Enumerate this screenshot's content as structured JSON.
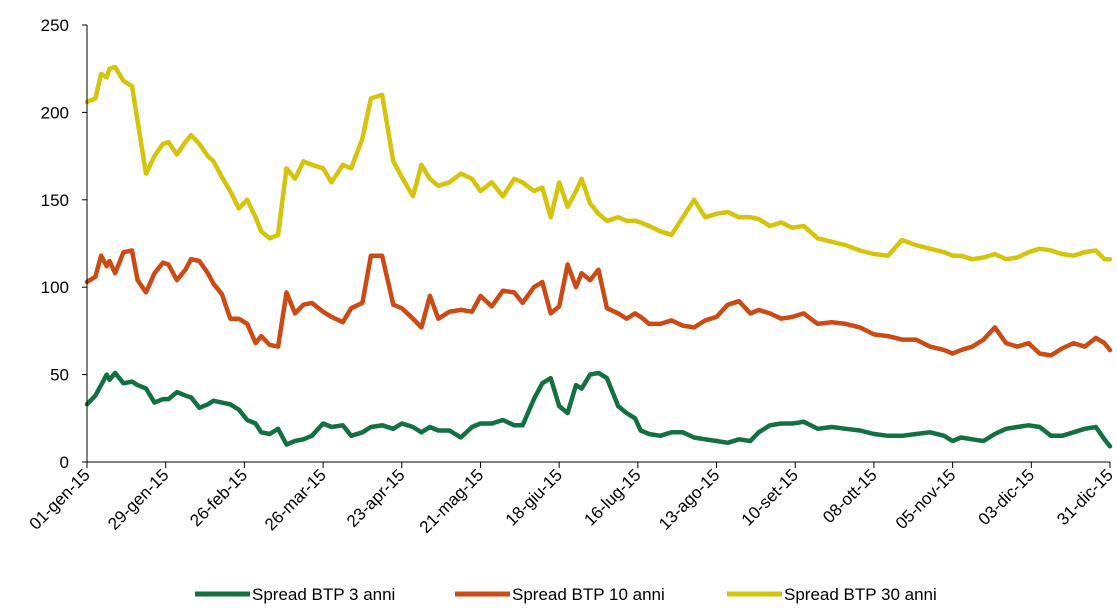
{
  "chart_data": {
    "type": "line",
    "title": "",
    "xlabel": "",
    "ylabel": "",
    "ylim": [
      0,
      250
    ],
    "yticks": [
      0,
      50,
      100,
      150,
      200,
      250
    ],
    "x_tick_labels": [
      "01-gen-15",
      "29-gen-15",
      "26-feb-15",
      "26-mar-15",
      "23-apr-15",
      "21-mag-15",
      "18-giu-15",
      "16-lug-15",
      "13-ago-15",
      "10-set-15",
      "08-ott-15",
      "05-nov-15",
      "03-dic-15",
      "31-dic-15"
    ],
    "x_tick_dates": [
      "2015-01-01",
      "2015-01-29",
      "2015-02-26",
      "2015-03-26",
      "2015-04-23",
      "2015-05-21",
      "2015-06-18",
      "2015-07-16",
      "2015-08-13",
      "2015-09-10",
      "2015-10-08",
      "2015-11-05",
      "2015-12-03",
      "2015-12-31"
    ],
    "legend_position": "bottom",
    "grid": false,
    "series": [
      {
        "name": "Spread BTP 3 anni",
        "color": "#137040",
        "x": [
          "2015-01-01",
          "2015-01-04",
          "2015-01-06",
          "2015-01-08",
          "2015-01-09",
          "2015-01-11",
          "2015-01-14",
          "2015-01-17",
          "2015-01-19",
          "2015-01-22",
          "2015-01-25",
          "2015-01-28",
          "2015-01-30",
          "2015-02-02",
          "2015-02-05",
          "2015-02-07",
          "2015-02-10",
          "2015-02-13",
          "2015-02-15",
          "2015-02-18",
          "2015-02-21",
          "2015-02-24",
          "2015-02-27",
          "2015-03-02",
          "2015-03-04",
          "2015-03-07",
          "2015-03-10",
          "2015-03-13",
          "2015-03-16",
          "2015-03-19",
          "2015-03-22",
          "2015-03-26",
          "2015-03-29",
          "2015-04-02",
          "2015-04-05",
          "2015-04-09",
          "2015-04-12",
          "2015-04-16",
          "2015-04-20",
          "2015-04-23",
          "2015-04-27",
          "2015-04-30",
          "2015-05-03",
          "2015-05-06",
          "2015-05-10",
          "2015-05-14",
          "2015-05-18",
          "2015-05-21",
          "2015-05-25",
          "2015-05-29",
          "2015-06-02",
          "2015-06-05",
          "2015-06-09",
          "2015-06-12",
          "2015-06-15",
          "2015-06-18",
          "2015-06-21",
          "2015-06-24",
          "2015-06-26",
          "2015-06-29",
          "2015-07-02",
          "2015-07-05",
          "2015-07-09",
          "2015-07-12",
          "2015-07-15",
          "2015-07-17",
          "2015-07-20",
          "2015-07-24",
          "2015-07-28",
          "2015-08-01",
          "2015-08-05",
          "2015-08-09",
          "2015-08-13",
          "2015-08-17",
          "2015-08-21",
          "2015-08-25",
          "2015-08-28",
          "2015-09-01",
          "2015-09-05",
          "2015-09-09",
          "2015-09-13",
          "2015-09-18",
          "2015-09-23",
          "2015-09-28",
          "2015-10-03",
          "2015-10-08",
          "2015-10-13",
          "2015-10-18",
          "2015-10-23",
          "2015-10-28",
          "2015-11-02",
          "2015-11-05",
          "2015-11-08",
          "2015-11-12",
          "2015-11-16",
          "2015-11-20",
          "2015-11-24",
          "2015-11-28",
          "2015-12-02",
          "2015-12-06",
          "2015-12-10",
          "2015-12-14",
          "2015-12-18",
          "2015-12-22",
          "2015-12-26",
          "2015-12-29",
          "2015-12-31"
        ],
        "y": [
          33,
          38,
          44,
          50,
          47,
          51,
          45,
          46,
          44,
          42,
          34,
          36,
          36,
          40,
          38,
          37,
          31,
          33,
          35,
          34,
          33,
          30,
          24,
          22,
          17,
          16,
          19,
          10,
          12,
          13,
          15,
          22,
          20,
          21,
          15,
          17,
          20,
          21,
          19,
          22,
          20,
          17,
          20,
          18,
          18,
          14,
          20,
          22,
          22,
          24,
          21,
          21,
          36,
          45,
          48,
          32,
          28,
          44,
          42,
          50,
          51,
          48,
          32,
          28,
          25,
          18,
          16,
          15,
          17,
          17,
          14,
          13,
          12,
          11,
          13,
          12,
          17,
          21,
          22,
          22,
          23,
          19,
          20,
          19,
          18,
          16,
          15,
          15,
          16,
          17,
          15,
          12,
          14,
          13,
          12,
          16,
          19,
          20,
          21,
          20,
          15,
          15,
          17,
          19,
          20,
          13,
          9
        ]
      },
      {
        "name": "Spread BTP 10 anni",
        "color": "#CC4A14",
        "x": [
          "2015-01-01",
          "2015-01-04",
          "2015-01-06",
          "2015-01-08",
          "2015-01-09",
          "2015-01-11",
          "2015-01-14",
          "2015-01-17",
          "2015-01-19",
          "2015-01-22",
          "2015-01-25",
          "2015-01-28",
          "2015-01-30",
          "2015-02-02",
          "2015-02-05",
          "2015-02-07",
          "2015-02-10",
          "2015-02-13",
          "2015-02-15",
          "2015-02-18",
          "2015-02-21",
          "2015-02-24",
          "2015-02-27",
          "2015-03-02",
          "2015-03-04",
          "2015-03-07",
          "2015-03-10",
          "2015-03-13",
          "2015-03-16",
          "2015-03-19",
          "2015-03-22",
          "2015-03-26",
          "2015-03-29",
          "2015-04-02",
          "2015-04-05",
          "2015-04-09",
          "2015-04-12",
          "2015-04-16",
          "2015-04-20",
          "2015-04-23",
          "2015-04-27",
          "2015-04-30",
          "2015-05-03",
          "2015-05-06",
          "2015-05-10",
          "2015-05-14",
          "2015-05-18",
          "2015-05-21",
          "2015-05-25",
          "2015-05-29",
          "2015-06-02",
          "2015-06-05",
          "2015-06-09",
          "2015-06-12",
          "2015-06-15",
          "2015-06-18",
          "2015-06-21",
          "2015-06-24",
          "2015-06-26",
          "2015-06-29",
          "2015-07-02",
          "2015-07-05",
          "2015-07-09",
          "2015-07-12",
          "2015-07-15",
          "2015-07-17",
          "2015-07-20",
          "2015-07-24",
          "2015-07-28",
          "2015-08-01",
          "2015-08-05",
          "2015-08-09",
          "2015-08-13",
          "2015-08-17",
          "2015-08-21",
          "2015-08-25",
          "2015-08-28",
          "2015-09-01",
          "2015-09-05",
          "2015-09-09",
          "2015-09-13",
          "2015-09-18",
          "2015-09-23",
          "2015-09-28",
          "2015-10-03",
          "2015-10-08",
          "2015-10-13",
          "2015-10-18",
          "2015-10-23",
          "2015-10-28",
          "2015-11-02",
          "2015-11-05",
          "2015-11-08",
          "2015-11-12",
          "2015-11-16",
          "2015-11-20",
          "2015-11-24",
          "2015-11-28",
          "2015-12-02",
          "2015-12-06",
          "2015-12-10",
          "2015-12-14",
          "2015-12-18",
          "2015-12-22",
          "2015-12-26",
          "2015-12-29",
          "2015-12-31"
        ],
        "y": [
          103,
          106,
          118,
          112,
          115,
          108,
          120,
          121,
          104,
          97,
          108,
          114,
          113,
          104,
          110,
          116,
          115,
          108,
          102,
          96,
          82,
          82,
          79,
          68,
          72,
          67,
          66,
          97,
          85,
          90,
          91,
          86,
          83,
          80,
          88,
          91,
          118,
          118,
          90,
          88,
          82,
          77,
          95,
          82,
          86,
          87,
          86,
          95,
          89,
          98,
          97,
          91,
          100,
          103,
          85,
          89,
          113,
          100,
          108,
          104,
          110,
          88,
          85,
          82,
          85,
          83,
          79,
          79,
          81,
          78,
          77,
          81,
          83,
          90,
          92,
          85,
          87,
          85,
          82,
          83,
          85,
          79,
          80,
          79,
          77,
          73,
          72,
          70,
          70,
          66,
          64,
          62,
          64,
          66,
          70,
          77,
          68,
          66,
          68,
          62,
          61,
          65,
          68,
          66,
          71,
          68,
          64
        ]
      },
      {
        "name": "Spread BTP 30 anni",
        "color": "#D5C40B",
        "x": [
          "2015-01-01",
          "2015-01-04",
          "2015-01-06",
          "2015-01-08",
          "2015-01-09",
          "2015-01-11",
          "2015-01-14",
          "2015-01-17",
          "2015-01-19",
          "2015-01-22",
          "2015-01-25",
          "2015-01-28",
          "2015-01-30",
          "2015-02-02",
          "2015-02-05",
          "2015-02-07",
          "2015-02-10",
          "2015-02-13",
          "2015-02-15",
          "2015-02-18",
          "2015-02-21",
          "2015-02-24",
          "2015-02-27",
          "2015-03-02",
          "2015-03-04",
          "2015-03-07",
          "2015-03-10",
          "2015-03-13",
          "2015-03-16",
          "2015-03-19",
          "2015-03-22",
          "2015-03-26",
          "2015-03-29",
          "2015-04-02",
          "2015-04-05",
          "2015-04-09",
          "2015-04-12",
          "2015-04-16",
          "2015-04-20",
          "2015-04-23",
          "2015-04-27",
          "2015-04-30",
          "2015-05-03",
          "2015-05-06",
          "2015-05-10",
          "2015-05-14",
          "2015-05-18",
          "2015-05-21",
          "2015-05-25",
          "2015-05-29",
          "2015-06-02",
          "2015-06-05",
          "2015-06-09",
          "2015-06-12",
          "2015-06-15",
          "2015-06-18",
          "2015-06-21",
          "2015-06-24",
          "2015-06-26",
          "2015-06-29",
          "2015-07-02",
          "2015-07-05",
          "2015-07-09",
          "2015-07-12",
          "2015-07-15",
          "2015-07-17",
          "2015-07-20",
          "2015-07-24",
          "2015-07-28",
          "2015-08-01",
          "2015-08-05",
          "2015-08-09",
          "2015-08-13",
          "2015-08-17",
          "2015-08-21",
          "2015-08-25",
          "2015-08-28",
          "2015-09-01",
          "2015-09-05",
          "2015-09-09",
          "2015-09-13",
          "2015-09-18",
          "2015-09-23",
          "2015-09-28",
          "2015-10-03",
          "2015-10-08",
          "2015-10-13",
          "2015-10-18",
          "2015-10-23",
          "2015-10-28",
          "2015-11-02",
          "2015-11-05",
          "2015-11-08",
          "2015-11-12",
          "2015-11-16",
          "2015-11-20",
          "2015-11-24",
          "2015-11-28",
          "2015-12-02",
          "2015-12-06",
          "2015-12-10",
          "2015-12-14",
          "2015-12-18",
          "2015-12-22",
          "2015-12-26",
          "2015-12-29",
          "2015-12-31"
        ],
        "y": [
          206,
          208,
          222,
          220,
          225,
          226,
          218,
          215,
          195,
          165,
          175,
          182,
          183,
          176,
          183,
          187,
          182,
          175,
          172,
          163,
          155,
          145,
          150,
          140,
          132,
          128,
          130,
          168,
          162,
          172,
          170,
          168,
          160,
          170,
          168,
          185,
          208,
          210,
          172,
          163,
          152,
          170,
          162,
          158,
          160,
          165,
          162,
          155,
          160,
          152,
          162,
          160,
          155,
          157,
          140,
          160,
          146,
          155,
          162,
          148,
          142,
          138,
          140,
          138,
          138,
          137,
          135,
          132,
          130,
          140,
          150,
          140,
          142,
          143,
          140,
          140,
          139,
          135,
          137,
          134,
          135,
          128,
          126,
          124,
          121,
          119,
          118,
          127,
          124,
          122,
          120,
          118,
          118,
          116,
          117,
          119,
          116,
          117,
          120,
          122,
          121,
          119,
          118,
          120,
          121,
          116,
          116
        ]
      }
    ]
  }
}
